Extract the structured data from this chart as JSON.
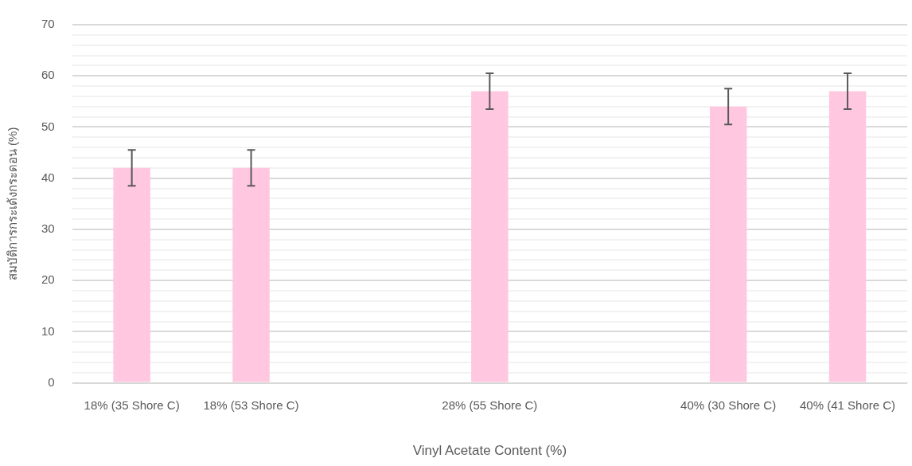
{
  "chart_data": {
    "type": "bar",
    "xlabel": "Vinyl Acetate Content (%)",
    "ylabel": "สมบัติการกระเด้งกระดอน (%)",
    "categories": [
      "18% (35 Shore C)",
      "18% (53 Shore C)",
      null,
      "28% (55 Shore C)",
      null,
      "40% (30 Shore C)",
      "40% (41 Shore C)"
    ],
    "values": [
      42,
      42,
      null,
      57,
      null,
      54,
      57
    ],
    "errors": [
      3.5,
      3.5,
      null,
      3.5,
      null,
      3.5,
      3.5
    ],
    "color": "#ffc7e0",
    "ylim": [
      0,
      70
    ],
    "yticks": [
      0,
      {
        "value": 2,
        "label": null
      },
      {
        "value": 4,
        "label": null
      },
      {
        "value": 6,
        "label": null
      },
      {
        "value": 8,
        "label": null
      },
      10,
      {
        "value": 12,
        "label": null
      },
      {
        "value": 14,
        "label": null
      },
      {
        "value": 16,
        "label": null
      },
      {
        "value": 18,
        "label": null
      },
      20,
      {
        "value": 22,
        "label": null
      },
      {
        "value": 24,
        "label": null
      },
      {
        "value": 26,
        "label": null
      },
      {
        "value": 28,
        "label": null
      },
      30,
      {
        "value": 32,
        "label": null
      },
      {
        "value": 34,
        "label": null
      },
      {
        "value": 36,
        "label": null
      },
      {
        "value": 38,
        "label": null
      },
      40,
      {
        "value": 42,
        "label": null
      },
      {
        "value": 44,
        "label": null
      },
      {
        "value": 46,
        "label": null
      },
      {
        "value": 48,
        "label": null
      },
      50,
      {
        "value": 52,
        "label": null
      },
      {
        "value": 54,
        "label": null
      },
      {
        "value": 56,
        "label": null
      },
      {
        "value": 58,
        "label": null
      },
      60,
      {
        "value": 62,
        "label": null
      },
      {
        "value": 64,
        "label": null
      },
      {
        "value": 66,
        "label": null
      },
      {
        "value": 68,
        "label": null
      },
      70
    ],
    "grid": "y",
    "legend": false
  }
}
